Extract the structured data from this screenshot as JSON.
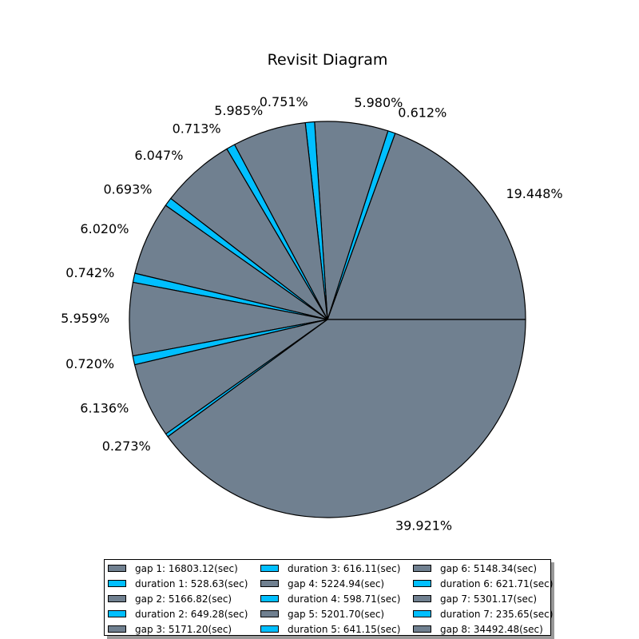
{
  "chart_data": {
    "type": "pie",
    "title": "Revisit Diagram",
    "start_angle_deg": 0,
    "direction": "counterclockwise",
    "slices": [
      {
        "label": "gap 1: 16803.12(sec)",
        "value": 16803.12,
        "pct_label": "19.448%",
        "color": "#708090"
      },
      {
        "label": "duration 1: 528.63(sec)",
        "value": 528.63,
        "pct_label": "0.612%",
        "color": "#00bfff"
      },
      {
        "label": "gap 2: 5166.82(sec)",
        "value": 5166.82,
        "pct_label": "5.980%",
        "color": "#708090"
      },
      {
        "label": "duration 2: 649.28(sec)",
        "value": 649.28,
        "pct_label": "0.751%",
        "color": "#00bfff"
      },
      {
        "label": "gap 3: 5171.20(sec)",
        "value": 5171.2,
        "pct_label": "5.985%",
        "color": "#708090"
      },
      {
        "label": "duration 3: 616.11(sec)",
        "value": 616.11,
        "pct_label": "0.713%",
        "color": "#00bfff"
      },
      {
        "label": "gap 4: 5224.94(sec)",
        "value": 5224.94,
        "pct_label": "6.047%",
        "color": "#708090"
      },
      {
        "label": "duration 4: 598.71(sec)",
        "value": 598.71,
        "pct_label": "0.693%",
        "color": "#00bfff"
      },
      {
        "label": "gap 5: 5201.70(sec)",
        "value": 5201.7,
        "pct_label": "6.020%",
        "color": "#708090"
      },
      {
        "label": "duration 5: 641.15(sec)",
        "value": 641.15,
        "pct_label": "0.742%",
        "color": "#00bfff"
      },
      {
        "label": "gap 6: 5148.34(sec)",
        "value": 5148.34,
        "pct_label": "5.959%",
        "color": "#708090"
      },
      {
        "label": "duration 6: 621.71(sec)",
        "value": 621.71,
        "pct_label": "0.720%",
        "color": "#00bfff"
      },
      {
        "label": "gap 7: 5301.17(sec)",
        "value": 5301.17,
        "pct_label": "6.136%",
        "color": "#708090"
      },
      {
        "label": "duration 7: 235.65(sec)",
        "value": 235.65,
        "pct_label": "0.273%",
        "color": "#00bfff"
      },
      {
        "label": "gap 8: 34492.48(sec)",
        "value": 34492.48,
        "pct_label": "39.921%",
        "color": "#708090"
      }
    ],
    "legend_placement": "bottom-center",
    "legend_columns": 3
  }
}
